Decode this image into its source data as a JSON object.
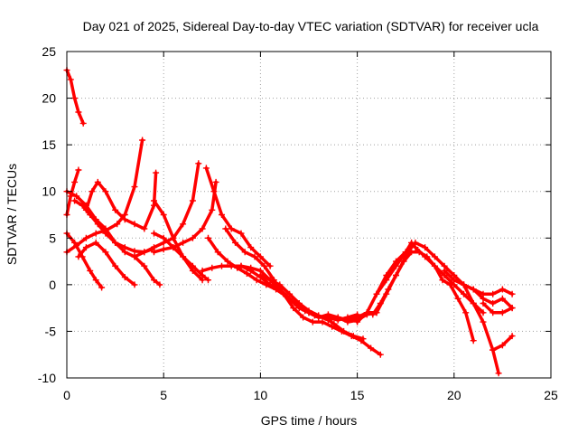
{
  "chart_data": {
    "type": "scatter",
    "title": "Day 021 of 2025, Sidereal Day-to-day VTEC variation (SDTVAR) for receiver ucla",
    "xlabel": "GPS time / hours",
    "ylabel": "SDTVAR / TECUs",
    "xlim": [
      0,
      25
    ],
    "ylim": [
      -10,
      25
    ],
    "xticks": [
      0,
      5,
      10,
      15,
      20,
      25
    ],
    "yticks": [
      -10,
      -5,
      0,
      5,
      10,
      15,
      20,
      25
    ],
    "grid": true,
    "marker": "+",
    "color": "#ff0000",
    "series": [
      {
        "name": "s1",
        "x": [
          0.0,
          0.2,
          0.4,
          0.6,
          0.85
        ],
        "y": [
          23.0,
          22.0,
          20.0,
          18.5,
          17.3
        ]
      },
      {
        "name": "s2",
        "x": [
          0.0,
          0.2,
          0.4,
          0.6
        ],
        "y": [
          7.5,
          9.5,
          11.0,
          12.3
        ]
      },
      {
        "name": "s3",
        "x": [
          0.0,
          0.5,
          1.0,
          1.5,
          2.0,
          2.6,
          3.0,
          3.5,
          3.9
        ],
        "y": [
          3.5,
          4.2,
          5.0,
          5.5,
          5.8,
          6.5,
          7.5,
          10.5,
          15.5
        ]
      },
      {
        "name": "s4",
        "x": [
          0.0,
          0.4,
          0.8,
          1.2,
          1.5,
          1.8
        ],
        "y": [
          5.5,
          4.5,
          3.0,
          1.5,
          0.5,
          -0.3
        ]
      },
      {
        "name": "s5",
        "x": [
          0.0,
          0.5,
          1.0,
          1.5,
          2.0,
          2.5,
          3.0,
          3.5,
          4.0,
          4.4
        ],
        "y": [
          10.0,
          9.5,
          8.5,
          7.0,
          6.0,
          4.5,
          4.0,
          3.6,
          3.5,
          3.8
        ]
      },
      {
        "name": "s6",
        "x": [
          0.6,
          1.0,
          1.5,
          2.0,
          2.5,
          3.0,
          3.5
        ],
        "y": [
          3.0,
          4.0,
          4.5,
          3.5,
          2.0,
          0.8,
          0.0
        ]
      },
      {
        "name": "s7",
        "x": [
          0.4,
          0.8,
          1.2,
          1.6,
          2.0,
          2.5,
          3.0,
          3.5,
          4.0,
          4.5,
          4.8
        ],
        "y": [
          9.0,
          8.5,
          7.5,
          6.5,
          5.5,
          4.5,
          3.5,
          3.0,
          2.0,
          0.5,
          0.0
        ]
      },
      {
        "name": "s8",
        "x": [
          1.0,
          1.3,
          1.6,
          2.0,
          2.5,
          3.0,
          3.5,
          4.0,
          4.5,
          4.6
        ],
        "y": [
          8.0,
          10.0,
          11.0,
          10.0,
          8.0,
          7.0,
          6.5,
          6.0,
          8.5,
          12.0
        ]
      },
      {
        "name": "s9",
        "x": [
          4.5,
          5.0,
          5.5,
          6.0,
          6.5,
          7.0
        ],
        "y": [
          9.0,
          7.5,
          5.0,
          3.0,
          1.5,
          0.5
        ]
      },
      {
        "name": "s10",
        "x": [
          3.5,
          4.0,
          4.5,
          5.0,
          5.5,
          6.0,
          6.5,
          6.8
        ],
        "y": [
          3.0,
          3.5,
          4.0,
          4.5,
          5.0,
          6.5,
          9.0,
          13.0
        ]
      },
      {
        "name": "s11",
        "x": [
          4.5,
          5.0,
          5.5,
          6.0,
          6.5,
          7.0,
          7.3
        ],
        "y": [
          5.5,
          5.0,
          4.0,
          3.0,
          2.0,
          1.0,
          0.5
        ]
      },
      {
        "name": "s12",
        "x": [
          4.5,
          5.0,
          5.5,
          6.0,
          6.5,
          7.0,
          7.5,
          7.7
        ],
        "y": [
          3.5,
          3.8,
          4.0,
          4.5,
          5.0,
          6.0,
          8.0,
          11.0
        ]
      },
      {
        "name": "s13",
        "x": [
          7.2,
          7.6,
          8.0,
          8.5,
          9.0,
          9.5,
          10.0,
          10.5
        ],
        "y": [
          12.5,
          10.0,
          7.5,
          6.0,
          5.5,
          4.0,
          3.0,
          2.0
        ]
      },
      {
        "name": "s14",
        "x": [
          7.3,
          7.8,
          8.3,
          8.8,
          9.3,
          9.8,
          10.3,
          10.8,
          11.3,
          11.8,
          12.3,
          12.8,
          13.3,
          13.8,
          14.3,
          14.8,
          15.3
        ],
        "y": [
          5.0,
          3.5,
          2.5,
          1.8,
          1.2,
          0.5,
          0.0,
          -0.5,
          -1.2,
          -2.0,
          -2.8,
          -3.3,
          -3.5,
          -4.2,
          -5.0,
          -5.5,
          -5.8
        ]
      },
      {
        "name": "s15",
        "x": [
          7.0,
          7.5,
          8.0,
          8.5,
          9.0,
          9.5,
          10.0,
          10.5,
          11.0,
          11.5,
          12.0,
          12.5,
          13.0,
          13.5,
          14.0,
          14.5,
          15.0
        ],
        "y": [
          1.5,
          1.8,
          2.0,
          2.0,
          2.0,
          1.8,
          1.5,
          0.5,
          -0.5,
          -1.5,
          -2.5,
          -3.0,
          -3.5,
          -3.5,
          -3.8,
          -3.5,
          -3.2
        ]
      },
      {
        "name": "s16",
        "x": [
          8.2,
          8.7,
          9.2,
          9.7,
          10.2,
          10.7,
          11.2,
          11.7,
          12.2,
          12.7,
          13.2,
          13.7,
          14.2,
          14.7,
          15.2,
          15.7,
          16.2
        ],
        "y": [
          6.0,
          4.5,
          3.5,
          3.0,
          2.0,
          0.5,
          -1.0,
          -2.5,
          -3.5,
          -4.0,
          -4.0,
          -4.5,
          -5.0,
          -5.5,
          -6.0,
          -6.8,
          -7.5
        ]
      },
      {
        "name": "s17",
        "x": [
          10.0,
          10.5,
          11.0,
          11.5,
          12.0,
          12.5,
          13.0,
          13.5,
          14.0,
          14.5,
          15.0,
          15.5,
          16.0
        ],
        "y": [
          1.0,
          0.5,
          0.0,
          -1.0,
          -2.0,
          -2.8,
          -3.3,
          -3.8,
          -3.5,
          -3.8,
          -3.5,
          -3.0,
          -3.0
        ]
      },
      {
        "name": "s18",
        "x": [
          9.0,
          9.5,
          10.0,
          10.5,
          11.0,
          11.5,
          12.0,
          12.5,
          13.0,
          13.5,
          14.0,
          14.5,
          15.0,
          15.5,
          16.0,
          16.5,
          17.0,
          17.5,
          17.8
        ],
        "y": [
          2.0,
          1.5,
          0.8,
          0.0,
          -0.5,
          -1.5,
          -2.5,
          -3.0,
          -3.5,
          -3.2,
          -3.5,
          -4.0,
          -3.8,
          -3.2,
          -3.0,
          -1.0,
          1.0,
          3.0,
          4.0
        ]
      },
      {
        "name": "s19",
        "x": [
          15.0,
          15.5,
          16.0,
          16.5,
          17.0,
          17.5,
          17.8,
          18.0,
          18.5,
          19.0,
          19.5,
          20.0,
          20.5,
          21.0,
          21.5
        ],
        "y": [
          -4.0,
          -3.0,
          -1.0,
          1.0,
          2.5,
          3.5,
          4.5,
          4.0,
          3.0,
          2.0,
          1.0,
          0.0,
          -1.0,
          -2.0,
          -3.0
        ]
      },
      {
        "name": "s20",
        "x": [
          15.8,
          16.2,
          16.6,
          17.0,
          17.4,
          17.8,
          18.2,
          18.6,
          19.0,
          19.4,
          19.8,
          20.2,
          20.6,
          21.0
        ],
        "y": [
          -3.2,
          -2.0,
          -0.5,
          1.0,
          2.5,
          3.5,
          3.5,
          3.0,
          2.0,
          0.5,
          0.0,
          -1.5,
          -3.0,
          -6.0
        ]
      },
      {
        "name": "s21",
        "x": [
          16.0,
          16.5,
          17.0,
          17.5,
          18.0,
          18.5,
          19.0,
          19.5,
          20.0,
          20.5,
          21.0,
          21.5,
          22.0,
          22.5,
          23.0
        ],
        "y": [
          -1.0,
          0.5,
          2.0,
          3.5,
          4.5,
          4.0,
          3.0,
          2.0,
          1.0,
          0.0,
          -0.5,
          -1.0,
          -1.0,
          -0.5,
          -1.0
        ]
      },
      {
        "name": "s22",
        "x": [
          19.5,
          20.0,
          20.5,
          21.0,
          21.5,
          22.0,
          22.5,
          23.0
        ],
        "y": [
          1.5,
          0.5,
          0.0,
          -0.5,
          -1.5,
          -2.0,
          -1.5,
          -2.5
        ]
      },
      {
        "name": "s23",
        "x": [
          20.5,
          21.0,
          21.5,
          22.0,
          22.3
        ],
        "y": [
          0.0,
          -2.0,
          -4.0,
          -7.0,
          -9.5
        ]
      },
      {
        "name": "s24",
        "x": [
          21.5,
          22.0,
          22.5,
          23.0
        ],
        "y": [
          -2.0,
          -3.0,
          -3.0,
          -2.5
        ]
      },
      {
        "name": "s25",
        "x": [
          22.0,
          22.5,
          23.0
        ],
        "y": [
          -7.0,
          -6.5,
          -5.5
        ]
      }
    ]
  }
}
